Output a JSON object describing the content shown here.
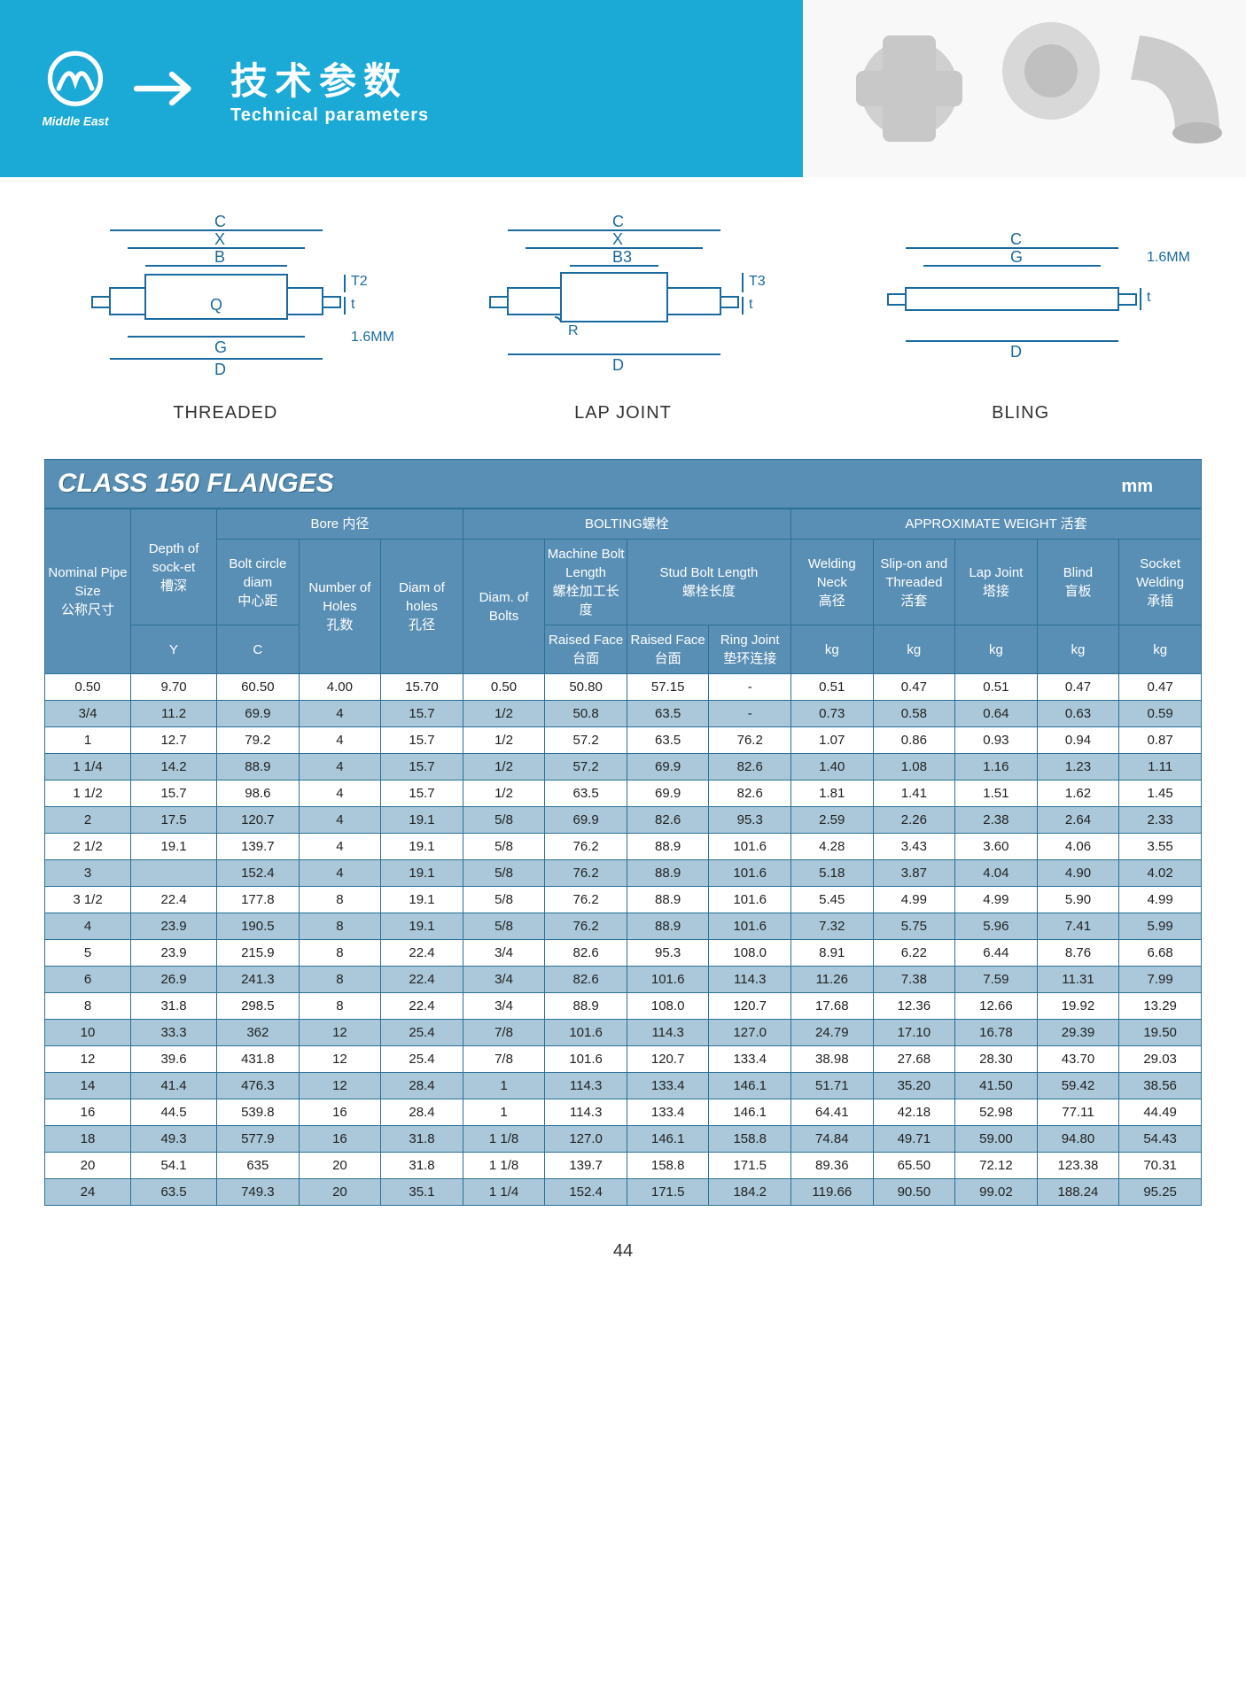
{
  "header": {
    "title_cn": "技术参数",
    "title_en": "Technical parameters",
    "brand": "Middle East"
  },
  "diagrams": {
    "d1": {
      "label": "THREADED",
      "dims": [
        "C",
        "X",
        "B",
        "Q",
        "G",
        "D",
        "T2",
        "t",
        "1.6MM"
      ]
    },
    "d2": {
      "label": "LAP JOINT",
      "dims": [
        "C",
        "X",
        "B3",
        "R",
        "D",
        "T3",
        "t"
      ]
    },
    "d3": {
      "label": "BLING",
      "dims": [
        "C",
        "G",
        "D",
        "1.6MM",
        "t"
      ]
    }
  },
  "table": {
    "title": "CLASS 150 FLANGES",
    "unit": "mm",
    "groupHeaders": {
      "bore": "Bore 内径",
      "bolting": "BOLTING螺栓",
      "weight": "APPROXIMATE WEIGHT 活套"
    },
    "columns": {
      "c0": {
        "en": "Nominal Pipe Size",
        "cn": "公称尺寸"
      },
      "c1": {
        "en": "Depth of sock-et",
        "cn": "槽深",
        "sub": "Y"
      },
      "c2": {
        "en": "Bolt circle diam",
        "cn": "中心距",
        "sub": "C"
      },
      "c3": {
        "en": "Number of Holes",
        "cn": "孔数"
      },
      "c4": {
        "en": "Diam of holes",
        "cn": "孔径"
      },
      "c5": {
        "en": "Diam. of Bolts"
      },
      "c6": {
        "en": "Machine Bolt Length",
        "cn": "螺栓加工长度",
        "sub": "Raised Face",
        "subcn": "台面"
      },
      "c7": {
        "en": "Stud Bolt Length",
        "cn": "螺栓长度"
      },
      "c7a": {
        "sub": "Raised Face",
        "subcn": "台面"
      },
      "c7b": {
        "sub": "Ring Joint",
        "subcn": "垫环连接"
      },
      "c8": {
        "en": "Welding Neck",
        "cn": "高径",
        "sub": "kg"
      },
      "c9": {
        "en": "Slip-on and Threaded",
        "cn": "活套",
        "sub": "kg"
      },
      "c10": {
        "en": "Lap Joint",
        "cn": "塔接",
        "sub": "kg"
      },
      "c11": {
        "en": "Blind",
        "cn": "盲板",
        "sub": "kg"
      },
      "c12": {
        "en": "Socket Welding",
        "cn": "承插",
        "sub": "kg"
      }
    },
    "rows": [
      [
        "0.50",
        "9.70",
        "60.50",
        "4.00",
        "15.70",
        "0.50",
        "50.80",
        "57.15",
        "-",
        "0.51",
        "0.47",
        "0.51",
        "0.47",
        "0.47"
      ],
      [
        "3/4",
        "11.2",
        "69.9",
        "4",
        "15.7",
        "1/2",
        "50.8",
        "63.5",
        "-",
        "0.73",
        "0.58",
        "0.64",
        "0.63",
        "0.59"
      ],
      [
        "1",
        "12.7",
        "79.2",
        "4",
        "15.7",
        "1/2",
        "57.2",
        "63.5",
        "76.2",
        "1.07",
        "0.86",
        "0.93",
        "0.94",
        "0.87"
      ],
      [
        "1 1/4",
        "14.2",
        "88.9",
        "4",
        "15.7",
        "1/2",
        "57.2",
        "69.9",
        "82.6",
        "1.40",
        "1.08",
        "1.16",
        "1.23",
        "1.11"
      ],
      [
        "1 1/2",
        "15.7",
        "98.6",
        "4",
        "15.7",
        "1/2",
        "63.5",
        "69.9",
        "82.6",
        "1.81",
        "1.41",
        "1.51",
        "1.62",
        "1.45"
      ],
      [
        "2",
        "17.5",
        "120.7",
        "4",
        "19.1",
        "5/8",
        "69.9",
        "82.6",
        "95.3",
        "2.59",
        "2.26",
        "2.38",
        "2.64",
        "2.33"
      ],
      [
        "2 1/2",
        "19.1",
        "139.7",
        "4",
        "19.1",
        "5/8",
        "76.2",
        "88.9",
        "101.6",
        "4.28",
        "3.43",
        "3.60",
        "4.06",
        "3.55"
      ],
      [
        "3",
        "",
        "152.4",
        "4",
        "19.1",
        "5/8",
        "76.2",
        "88.9",
        "101.6",
        "5.18",
        "3.87",
        "4.04",
        "4.90",
        "4.02"
      ],
      [
        "3 1/2",
        "22.4",
        "177.8",
        "8",
        "19.1",
        "5/8",
        "76.2",
        "88.9",
        "101.6",
        "5.45",
        "4.99",
        "4.99",
        "5.90",
        "4.99"
      ],
      [
        "4",
        "23.9",
        "190.5",
        "8",
        "19.1",
        "5/8",
        "76.2",
        "88.9",
        "101.6",
        "7.32",
        "5.75",
        "5.96",
        "7.41",
        "5.99"
      ],
      [
        "5",
        "23.9",
        "215.9",
        "8",
        "22.4",
        "3/4",
        "82.6",
        "95.3",
        "108.0",
        "8.91",
        "6.22",
        "6.44",
        "8.76",
        "6.68"
      ],
      [
        "6",
        "26.9",
        "241.3",
        "8",
        "22.4",
        "3/4",
        "82.6",
        "101.6",
        "114.3",
        "11.26",
        "7.38",
        "7.59",
        "11.31",
        "7.99"
      ],
      [
        "8",
        "31.8",
        "298.5",
        "8",
        "22.4",
        "3/4",
        "88.9",
        "108.0",
        "120.7",
        "17.68",
        "12.36",
        "12.66",
        "19.92",
        "13.29"
      ],
      [
        "10",
        "33.3",
        "362",
        "12",
        "25.4",
        "7/8",
        "101.6",
        "114.3",
        "127.0",
        "24.79",
        "17.10",
        "16.78",
        "29.39",
        "19.50"
      ],
      [
        "12",
        "39.6",
        "431.8",
        "12",
        "25.4",
        "7/8",
        "101.6",
        "120.7",
        "133.4",
        "38.98",
        "27.68",
        "28.30",
        "43.70",
        "29.03"
      ],
      [
        "14",
        "41.4",
        "476.3",
        "12",
        "28.4",
        "1",
        "114.3",
        "133.4",
        "146.1",
        "51.71",
        "35.20",
        "41.50",
        "59.42",
        "38.56"
      ],
      [
        "16",
        "44.5",
        "539.8",
        "16",
        "28.4",
        "1",
        "114.3",
        "133.4",
        "146.1",
        "64.41",
        "42.18",
        "52.98",
        "77.11",
        "44.49"
      ],
      [
        "18",
        "49.3",
        "577.9",
        "16",
        "31.8",
        "1 1/8",
        "127.0",
        "146.1",
        "158.8",
        "74.84",
        "49.71",
        "59.00",
        "94.80",
        "54.43"
      ],
      [
        "20",
        "54.1",
        "635",
        "20",
        "31.8",
        "1 1/8",
        "139.7",
        "158.8",
        "171.5",
        "89.36",
        "65.50",
        "72.12",
        "123.38",
        "70.31"
      ],
      [
        "24",
        "63.5",
        "749.3",
        "20",
        "35.1",
        "1 1/4",
        "152.4",
        "171.5",
        "184.2",
        "119.66",
        "90.50",
        "99.02",
        "188.24",
        "95.25"
      ]
    ]
  },
  "pageNumber": "44",
  "colors": {
    "headerBg": "#1ba9d6",
    "thBg": "#5a8fb5",
    "border": "#2a7097",
    "stripe": "#aac8d9"
  }
}
